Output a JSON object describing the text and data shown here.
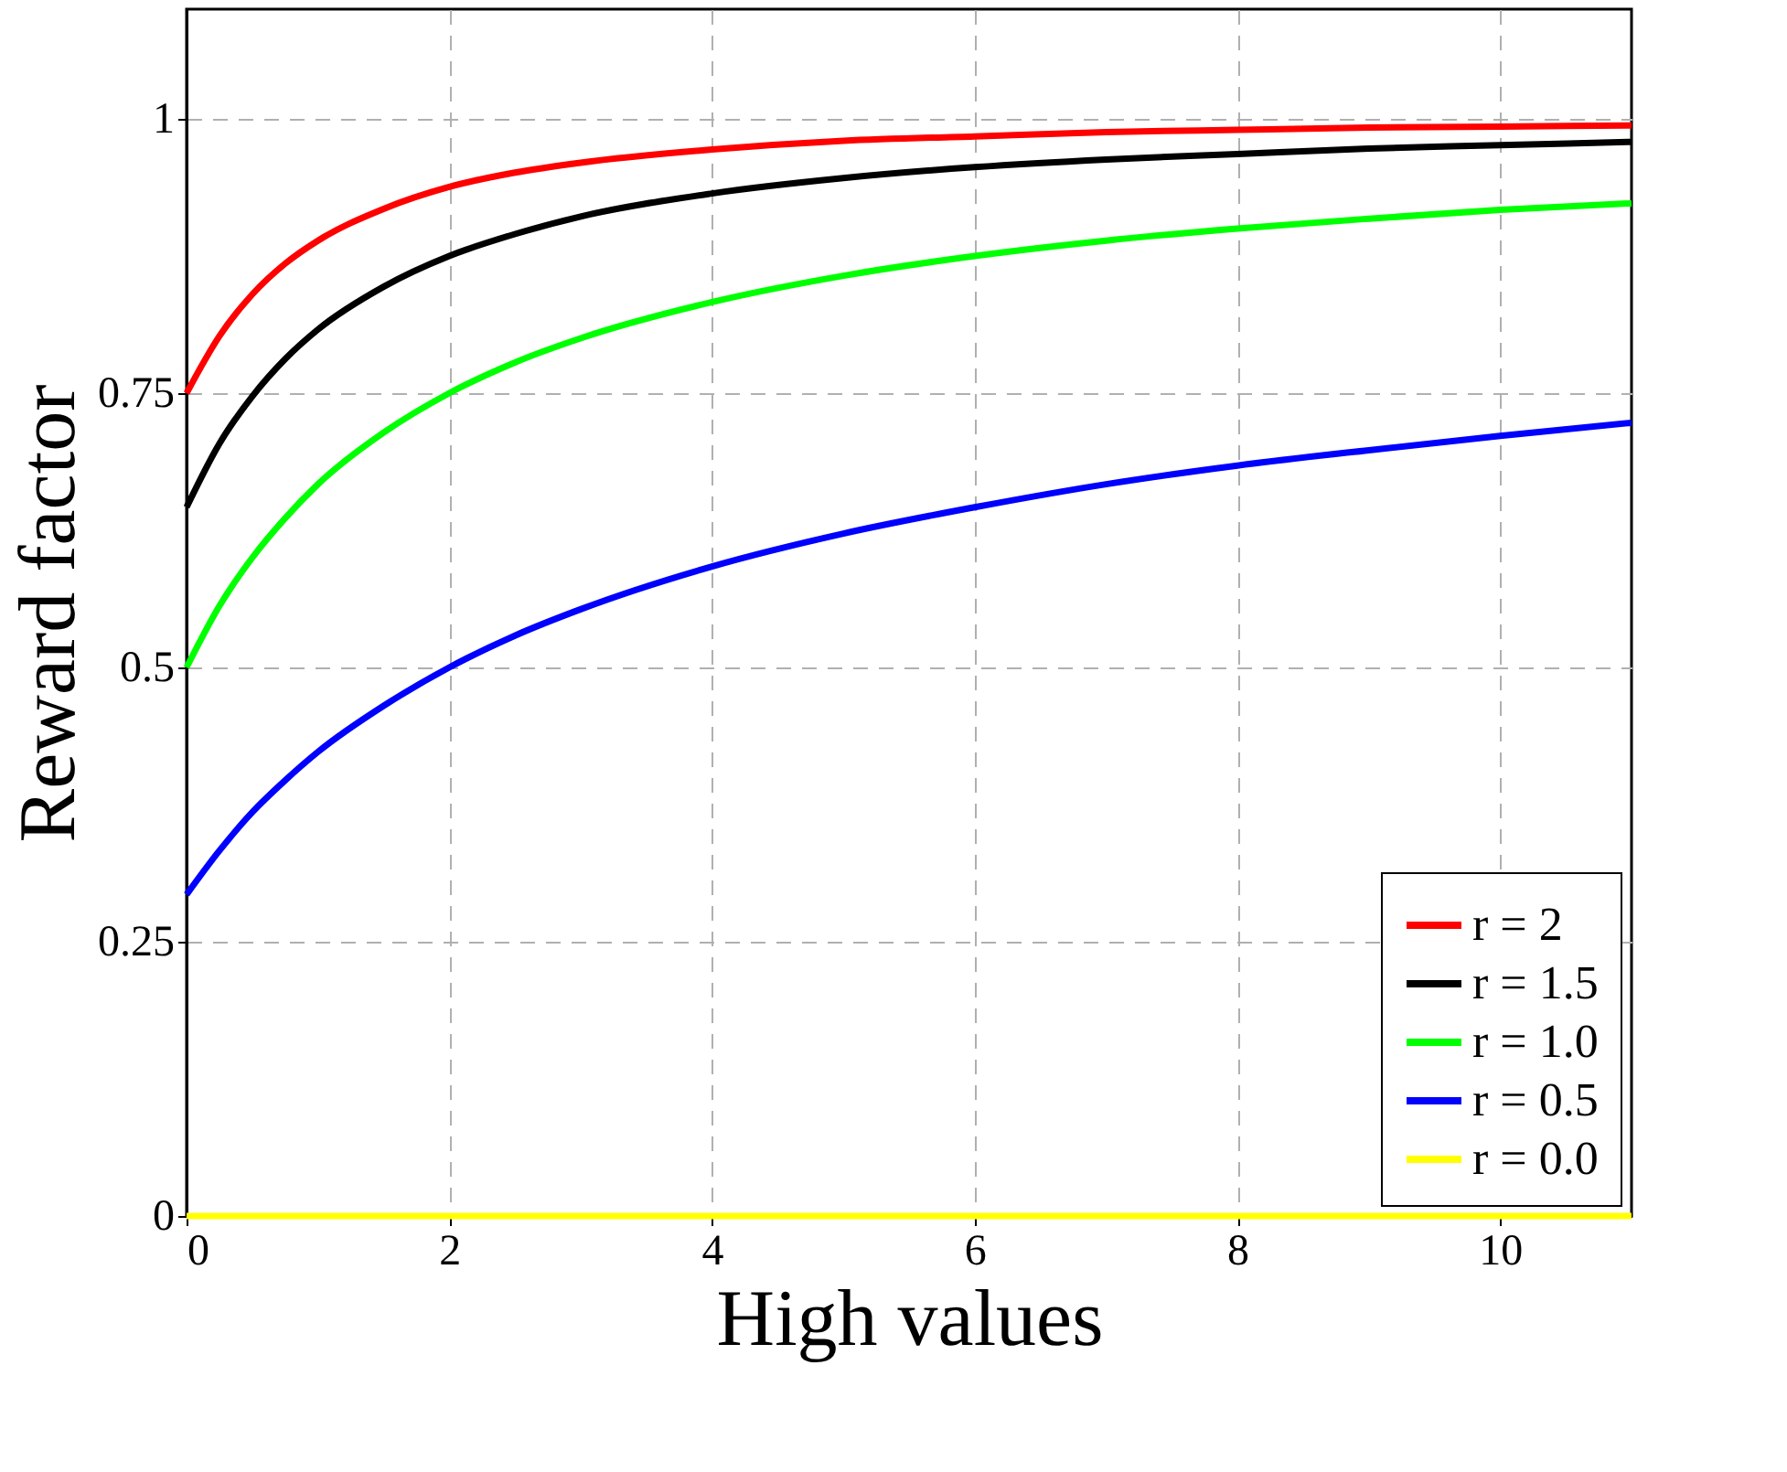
{
  "chart_data": {
    "type": "line",
    "xlabel": "High values",
    "ylabel": "Reward factor",
    "x": [
      0,
      0.25,
      0.5,
      0.75,
      1,
      1.5,
      2,
      2.5,
      3,
      4,
      5,
      6,
      7,
      8,
      9,
      10,
      11
    ],
    "series": [
      {
        "name": "r = 2",
        "color": "#ff0000",
        "values": [
          0.75,
          0.802,
          0.84,
          0.868,
          0.889,
          0.918,
          0.938,
          0.951,
          0.96,
          0.972,
          0.98,
          0.984,
          0.988,
          0.99,
          0.992,
          0.993,
          0.994
        ]
      },
      {
        "name": "r = 1.5",
        "color": "#000000",
        "values": [
          0.646,
          0.704,
          0.747,
          0.781,
          0.808,
          0.847,
          0.875,
          0.895,
          0.911,
          0.932,
          0.946,
          0.956,
          0.963,
          0.968,
          0.973,
          0.976,
          0.979
        ]
      },
      {
        "name": "r = 1.0",
        "color": "#00ff00",
        "values": [
          0.5,
          0.556,
          0.6,
          0.636,
          0.667,
          0.714,
          0.75,
          0.778,
          0.8,
          0.833,
          0.857,
          0.875,
          0.889,
          0.9,
          0.909,
          0.917,
          0.923
        ]
      },
      {
        "name": "r = 0.5",
        "color": "#0000ff",
        "values": [
          0.293,
          0.333,
          0.368,
          0.397,
          0.423,
          0.465,
          0.5,
          0.529,
          0.553,
          0.592,
          0.622,
          0.646,
          0.667,
          0.684,
          0.698,
          0.711,
          0.723
        ]
      },
      {
        "name": "r = 0.0",
        "color": "#ffff00",
        "values": [
          0,
          0,
          0,
          0,
          0,
          0,
          0,
          0,
          0,
          0,
          0,
          0,
          0,
          0,
          0,
          0,
          0
        ]
      }
    ],
    "xlim": [
      0,
      11
    ],
    "ylim": [
      0,
      1.1
    ],
    "xticks": [
      0,
      2,
      4,
      6,
      8,
      10
    ],
    "yticks": [
      0,
      0.25,
      0.5,
      0.75,
      1
    ],
    "grid": true,
    "legend": "bottom right",
    "marker": "none",
    "line_style": "solid"
  }
}
